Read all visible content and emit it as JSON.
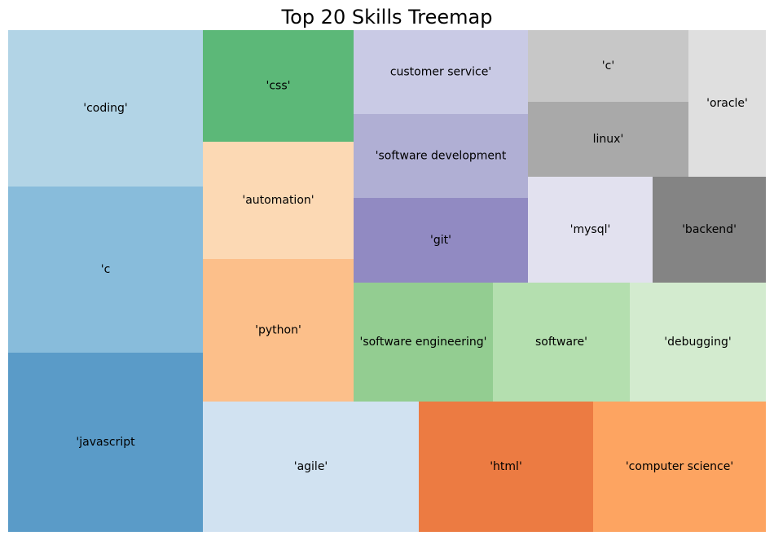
{
  "chart_data": {
    "type": "treemap",
    "title": "Top 20 Skills Treemap",
    "cells": [
      {
        "label": "'coding'",
        "color": "#b2d4e6"
      },
      {
        "label": "'c",
        "color": "#88bcdb"
      },
      {
        "label": "'javascript",
        "color": "#5a9bc8"
      },
      {
        "label": "'css'",
        "color": "#5cb878"
      },
      {
        "label": "'automation'",
        "color": "#fcd9b4"
      },
      {
        "label": "'python'",
        "color": "#fcbf8a"
      },
      {
        "label": "customer service'",
        "color": "#c9cae5"
      },
      {
        "label": "'software development",
        "color": "#b0afd4"
      },
      {
        "label": "'git'",
        "color": "#918ac2"
      },
      {
        "label": "'c'",
        "color": "#c7c7c7"
      },
      {
        "label": "linux'",
        "color": "#a9a9a9"
      },
      {
        "label": "'oracle'",
        "color": "#dfdfdf"
      },
      {
        "label": "'mysql'",
        "color": "#e2e1ef"
      },
      {
        "label": "'backend'",
        "color": "#848484"
      },
      {
        "label": "'software engineering'",
        "color": "#93cd91"
      },
      {
        "label": "software'",
        "color": "#b4dfaf"
      },
      {
        "label": "'debugging'",
        "color": "#d3ebcf"
      },
      {
        "label": "'agile'",
        "color": "#d1e2f1"
      },
      {
        "label": "'html'",
        "color": "#ec7b42"
      },
      {
        "label": "'computer science'",
        "color": "#fda461"
      }
    ]
  }
}
